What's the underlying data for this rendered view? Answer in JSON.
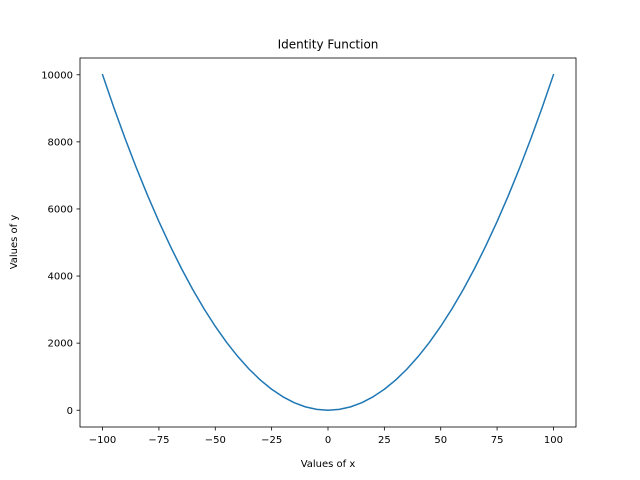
{
  "chart_data": {
    "type": "line",
    "title": "Identity Function",
    "xlabel": "Values of x",
    "ylabel": "Values of y",
    "xlim": [
      -110,
      110
    ],
    "ylim": [
      -500,
      10500
    ],
    "x_ticks": [
      -100,
      -75,
      -50,
      -25,
      0,
      25,
      50,
      75,
      100
    ],
    "x_tick_labels": [
      "−100",
      "−75",
      "−50",
      "−25",
      "0",
      "25",
      "50",
      "75",
      "100"
    ],
    "y_ticks": [
      0,
      2000,
      4000,
      6000,
      8000,
      10000
    ],
    "y_tick_labels": [
      "0",
      "2000",
      "4000",
      "6000",
      "8000",
      "10000"
    ],
    "grid": false,
    "series": [
      {
        "color": "#1f77b4",
        "x": [
          -100,
          -95,
          -90,
          -85,
          -80,
          -75,
          -70,
          -65,
          -60,
          -55,
          -50,
          -45,
          -40,
          -35,
          -30,
          -25,
          -20,
          -15,
          -10,
          -5,
          0,
          5,
          10,
          15,
          20,
          25,
          30,
          35,
          40,
          45,
          50,
          55,
          60,
          65,
          70,
          75,
          80,
          85,
          90,
          95,
          100
        ],
        "y": [
          10000,
          9025,
          8100,
          7225,
          6400,
          5625,
          4900,
          4225,
          3600,
          3025,
          2500,
          2025,
          1600,
          1225,
          900,
          625,
          400,
          225,
          100,
          25,
          0,
          25,
          100,
          225,
          400,
          625,
          900,
          1225,
          1600,
          2025,
          2500,
          3025,
          3600,
          4225,
          4900,
          5625,
          6400,
          7225,
          8100,
          9025,
          10000
        ]
      }
    ]
  }
}
